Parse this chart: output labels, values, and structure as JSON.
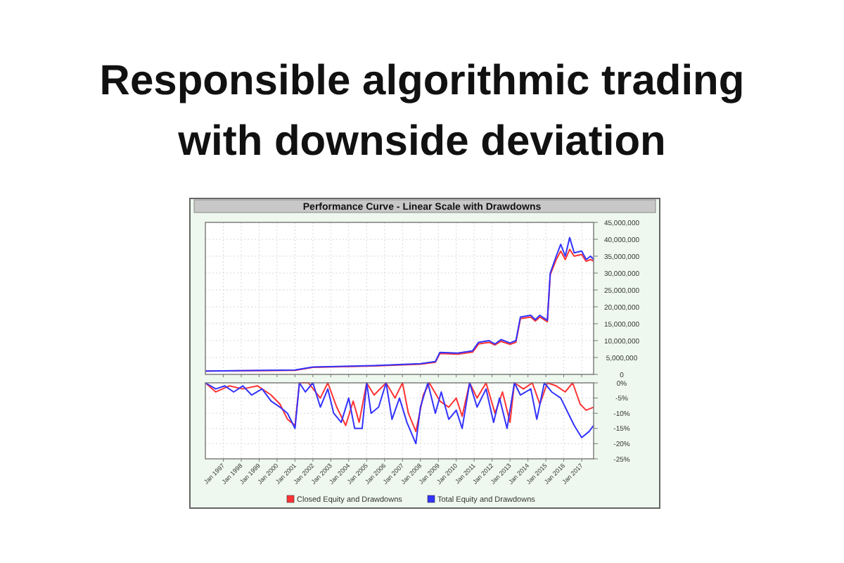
{
  "chart_data": [
    {
      "type": "line",
      "title": "Responsible algorithmic trading\nwith downside deviation",
      "subtitle": "Performance Curve - Linear Scale with Drawdowns",
      "xlim": [
        "1996-01",
        "2017-09"
      ],
      "xticks": [
        {
          "value": "1997-01",
          "label": null
        },
        {
          "value": "1998-01",
          "label": null
        },
        {
          "value": "1999-01",
          "label": null
        },
        {
          "value": "2000-01",
          "label": null
        },
        {
          "value": "2001-01",
          "label": null
        },
        {
          "value": "2002-01",
          "label": null
        },
        {
          "value": "2003-01",
          "label": null
        },
        {
          "value": "2004-01",
          "label": null
        },
        {
          "value": "2005-01",
          "label": null
        },
        {
          "value": "2006-01",
          "label": null
        },
        {
          "value": "2007-01",
          "label": null
        },
        {
          "value": "2008-01",
          "label": null
        },
        {
          "value": "2009-01",
          "label": null
        },
        {
          "value": "2010-01",
          "label": null
        },
        {
          "value": "2011-01",
          "label": null
        },
        {
          "value": "2012-01",
          "label": null
        },
        {
          "value": "2013-01",
          "label": null
        },
        {
          "value": "2014-01",
          "label": null
        },
        {
          "value": "2015-01",
          "label": null
        },
        {
          "value": "2016-01",
          "label": null
        },
        {
          "value": "2017-01",
          "label": null
        }
      ],
      "ylim": [
        0,
        45000000
      ],
      "yticks": [
        {
          "value": 0,
          "label": "0"
        },
        {
          "value": 5000000,
          "label": "5,000,000"
        },
        {
          "value": 10000000,
          "label": "10,000,000"
        },
        {
          "value": 15000000,
          "label": "15,000,000"
        },
        {
          "value": 20000000,
          "label": "20,000,000"
        },
        {
          "value": 25000000,
          "label": "25,000,000"
        },
        {
          "value": 30000000,
          "label": "30,000,000"
        },
        {
          "value": 35000000,
          "label": "35,000,000"
        },
        {
          "value": 40000000,
          "label": "40,000,000"
        },
        {
          "value": 45000000,
          "label": "45,000,000"
        }
      ],
      "grid": true,
      "tick_labels": "y",
      "x": [
        "1996-01",
        "2001-01",
        "2002-01",
        "2005-06",
        "2008-01",
        "2008-11",
        "2009-02",
        "2010-02",
        "2010-12",
        "2011-04",
        "2011-11",
        "2012-03",
        "2012-07",
        "2013-01",
        "2013-05",
        "2013-08",
        "2014-03",
        "2014-06",
        "2014-09",
        "2015-02",
        "2015-04",
        "2015-08",
        "2015-11",
        "2016-02",
        "2016-05",
        "2016-08",
        "2017-01",
        "2017-04",
        "2017-07",
        "2017-09"
      ],
      "series": [
        {
          "color": "#ff3333",
          "values": [
            1000000,
            1200000,
            2100000,
            2500000,
            3000000,
            3600000,
            6200000,
            6000000,
            6600000,
            9000000,
            9500000,
            8700000,
            9800000,
            8900000,
            9500000,
            16500000,
            17000000,
            15800000,
            17000000,
            15600000,
            29500000,
            34000000,
            36500000,
            34000000,
            37000000,
            35000000,
            35500000,
            33500000,
            34000000,
            33500000
          ]
        },
        {
          "color": "#3333ff",
          "values": [
            1000000,
            1300000,
            2200000,
            2600000,
            3200000,
            3800000,
            6500000,
            6300000,
            7000000,
            9500000,
            10000000,
            9000000,
            10300000,
            9300000,
            10000000,
            17000000,
            17500000,
            16200000,
            17500000,
            16000000,
            30000000,
            35000000,
            38500000,
            35000000,
            40500000,
            36000000,
            36500000,
            34000000,
            35000000,
            34000000
          ]
        }
      ]
    },
    {
      "type": "line",
      "xlim": [
        "1996-01",
        "2017-09"
      ],
      "xticks": [
        {
          "value": "1997-01",
          "label": "Jan 1997"
        },
        {
          "value": "1998-01",
          "label": "Jan 1998"
        },
        {
          "value": "1999-01",
          "label": "Jan 1999"
        },
        {
          "value": "2000-01",
          "label": "Jan 2000"
        },
        {
          "value": "2001-01",
          "label": "Jan 2001"
        },
        {
          "value": "2002-01",
          "label": "Jan 2002"
        },
        {
          "value": "2003-01",
          "label": "Jan 2003"
        },
        {
          "value": "2004-01",
          "label": "Jan 2004"
        },
        {
          "value": "2005-01",
          "label": "Jan 2005"
        },
        {
          "value": "2006-01",
          "label": "Jan 2006"
        },
        {
          "value": "2007-01",
          "label": "Jan 2007"
        },
        {
          "value": "2008-01",
          "label": "Jan 2008"
        },
        {
          "value": "2009-01",
          "label": "Jan 2009"
        },
        {
          "value": "2010-01",
          "label": "Jan 2010"
        },
        {
          "value": "2011-01",
          "label": "Jan 2011"
        },
        {
          "value": "2012-01",
          "label": "Jan 2012"
        },
        {
          "value": "2013-01",
          "label": "Jan 2013"
        },
        {
          "value": "2014-01",
          "label": "Jan 2014"
        },
        {
          "value": "2015-01",
          "label": "Jan 2015"
        },
        {
          "value": "2016-01",
          "label": "Jan 2016"
        },
        {
          "value": "2017-01",
          "label": "Jan 2017"
        }
      ],
      "ylim": [
        -25,
        0
      ],
      "yticks": [
        {
          "value": 0,
          "label": "0%"
        },
        {
          "value": -5,
          "label": "-5%"
        },
        {
          "value": -10,
          "label": "-10%"
        },
        {
          "value": -15,
          "label": "-15%"
        },
        {
          "value": -20,
          "label": "-20%"
        },
        {
          "value": -25,
          "label": "-25%"
        }
      ],
      "grid": true,
      "legend": "bottom",
      "series": [
        {
          "name": "Closed Equity and Drawdowns",
          "color": "#ff3333",
          "x": [
            "1996-01",
            "1996-08",
            "1997-05",
            "1998-02",
            "1998-12",
            "1999-09",
            "2000-03",
            "2000-08",
            "2001-01",
            "2001-04",
            "2001-10",
            "2002-06",
            "2002-11",
            "2003-05",
            "2003-11",
            "2004-04",
            "2004-08",
            "2005-01",
            "2005-06",
            "2006-02",
            "2006-08",
            "2007-01",
            "2007-05",
            "2007-10",
            "2008-03",
            "2008-07",
            "2009-02",
            "2009-08",
            "2010-01",
            "2010-05",
            "2010-10",
            "2011-03",
            "2011-09",
            "2012-03",
            "2012-08",
            "2013-01",
            "2013-04",
            "2013-10",
            "2014-04",
            "2014-09",
            "2015-02",
            "2015-08",
            "2016-02",
            "2016-07",
            "2016-12",
            "2017-04",
            "2017-09"
          ],
          "values": [
            0,
            -3,
            -1,
            -2,
            -1,
            -4,
            -7,
            -12,
            -14,
            0,
            0,
            -5,
            0,
            -8,
            -14,
            -6,
            -13,
            0,
            -4,
            0,
            -5,
            0,
            -10,
            -16,
            -4,
            0,
            -6,
            -8,
            -5,
            -11,
            0,
            -5,
            0,
            -10,
            -3,
            -13,
            0,
            -2,
            0,
            -7,
            0,
            -1,
            -3,
            0,
            -7,
            -9,
            -8
          ]
        },
        {
          "name": "Total Equity and Drawdowns",
          "color": "#3333ff",
          "x": [
            "1996-01",
            "1996-08",
            "1997-02",
            "1997-08",
            "1998-02",
            "1998-08",
            "1999-03",
            "1999-09",
            "2000-03",
            "2000-08",
            "2001-01",
            "2001-04",
            "2001-08",
            "2002-01",
            "2002-06",
            "2002-11",
            "2003-03",
            "2003-08",
            "2004-01",
            "2004-05",
            "2004-10",
            "2005-01",
            "2005-04",
            "2005-09",
            "2006-02",
            "2006-06",
            "2006-11",
            "2007-04",
            "2007-10",
            "2008-01",
            "2008-06",
            "2008-11",
            "2009-03",
            "2009-08",
            "2010-01",
            "2010-05",
            "2010-10",
            "2011-03",
            "2011-09",
            "2012-02",
            "2012-06",
            "2012-11",
            "2013-04",
            "2013-08",
            "2014-03",
            "2014-07",
            "2014-12",
            "2015-05",
            "2015-11",
            "2016-04",
            "2016-08",
            "2017-01",
            "2017-06",
            "2017-09"
          ],
          "values": [
            0,
            -2,
            -1,
            -3,
            -1,
            -4,
            -2,
            -6,
            -8,
            -10,
            -15,
            0,
            -3,
            0,
            -8,
            -2,
            -10,
            -13,
            -5,
            -15,
            -15,
            0,
            -10,
            -8,
            0,
            -12,
            -5,
            -13,
            -20,
            -8,
            0,
            -10,
            -3,
            -12,
            -9,
            -15,
            0,
            -8,
            -2,
            -13,
            -5,
            -15,
            0,
            -4,
            -2,
            -12,
            0,
            -3,
            -5,
            -10,
            -14,
            -18,
            -16,
            -14
          ]
        }
      ]
    }
  ]
}
